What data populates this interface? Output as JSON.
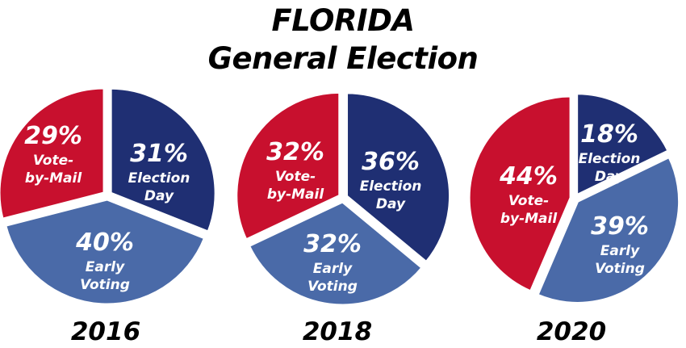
{
  "title": {
    "line1": "FLORIDA",
    "line2": "General Election"
  },
  "colors": {
    "vbm": "#c8102e",
    "election_day": "#1f2f73",
    "early": "#4a6aa8",
    "stroke": "#ffffff",
    "text": "#ffffff"
  },
  "chart_data": [
    {
      "type": "pie",
      "year": "2016",
      "slices": [
        {
          "label_lines": [
            "Vote-",
            "by-Mail"
          ],
          "pct": "29%",
          "value": 29,
          "color_key": "vbm"
        },
        {
          "label_lines": [
            "Election",
            "Day"
          ],
          "pct": "31%",
          "value": 31,
          "color_key": "election_day"
        },
        {
          "label_lines": [
            "Early",
            "Voting"
          ],
          "pct": "40%",
          "value": 40,
          "color_key": "early"
        }
      ]
    },
    {
      "type": "pie",
      "year": "2018",
      "slices": [
        {
          "label_lines": [
            "Vote-",
            "by-Mail"
          ],
          "pct": "32%",
          "value": 32,
          "color_key": "vbm"
        },
        {
          "label_lines": [
            "Election",
            "Day"
          ],
          "pct": "36%",
          "value": 36,
          "color_key": "election_day"
        },
        {
          "label_lines": [
            "Early",
            "Voting"
          ],
          "pct": "32%",
          "value": 32,
          "color_key": "early"
        }
      ]
    },
    {
      "type": "pie",
      "year": "2020",
      "slices": [
        {
          "label_lines": [
            "Vote-",
            "by-Mail"
          ],
          "pct": "44%",
          "value": 44,
          "color_key": "vbm"
        },
        {
          "label_lines": [
            "Election",
            "Day"
          ],
          "pct": "18%",
          "value": 18,
          "color_key": "election_day"
        },
        {
          "label_lines": [
            "Early",
            "Voting"
          ],
          "pct": "39%",
          "value": 39,
          "color_key": "early"
        }
      ]
    }
  ]
}
